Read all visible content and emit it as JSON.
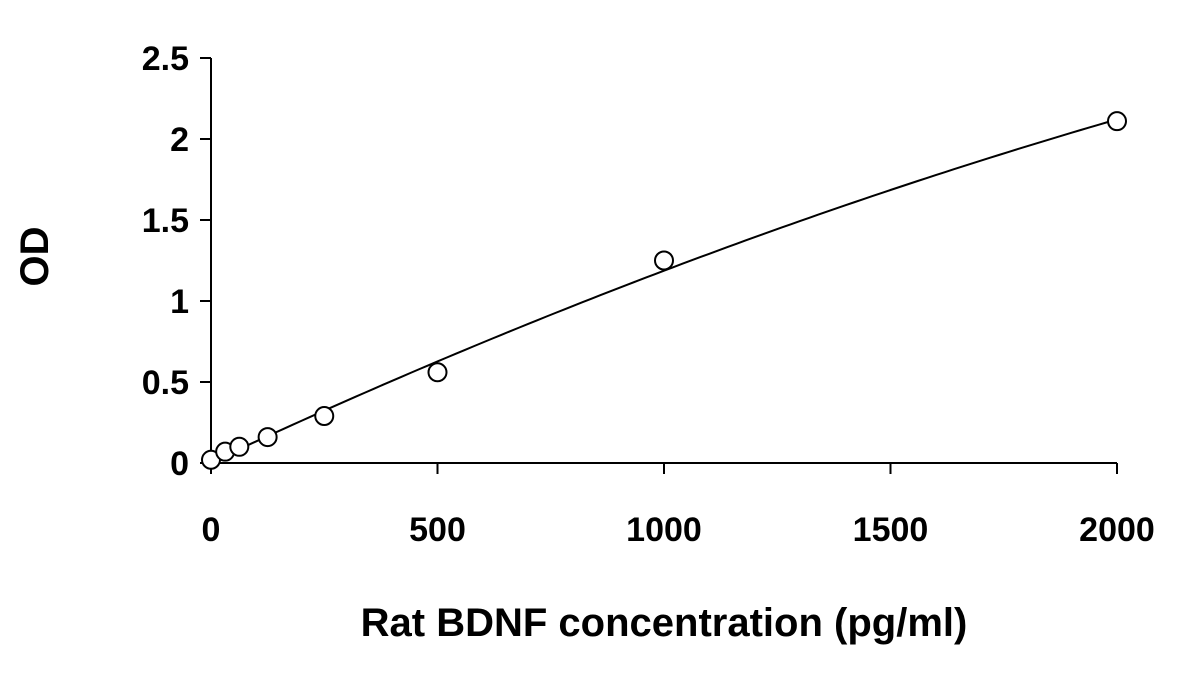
{
  "chart_data": {
    "type": "scatter",
    "title": "",
    "xlabel": "Rat BDNF concentration (pg/ml)",
    "ylabel": "OD",
    "xlim": [
      0,
      2000
    ],
    "ylim": [
      0,
      2.5
    ],
    "x_ticks": [
      "0",
      "500",
      "1000",
      "1500",
      "2000"
    ],
    "y_ticks": [
      "0",
      "0.5",
      "1",
      "1.5",
      "2",
      "2.5"
    ],
    "grid": false,
    "legend": "none",
    "series": [
      {
        "x": [
          0,
          31.25,
          62.5,
          125,
          250,
          500,
          1000,
          2000
        ],
        "y": [
          0.02,
          0.07,
          0.1,
          0.16,
          0.29,
          0.56,
          1.25,
          2.11
        ],
        "marker": "open-circle",
        "trendline": "polynomial"
      }
    ],
    "colors": {
      "axis": "#000000",
      "marker_fill": "#ffffff",
      "marker_stroke": "#000000"
    }
  }
}
